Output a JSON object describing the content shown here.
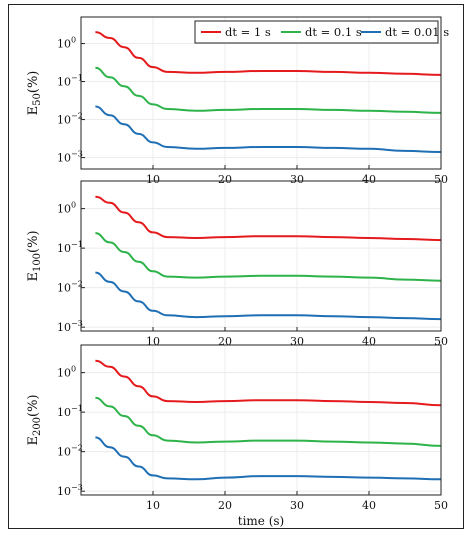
{
  "chart_data": [
    {
      "type": "line",
      "ylabel_main": "E",
      "ylabel_sub": "50",
      "ylabel_unit": "(%)",
      "xlabel": "",
      "xlim": [
        0,
        50
      ],
      "ylim": [
        0.0005,
        5
      ],
      "yscale": "log",
      "x_ticks": [
        10,
        20,
        30,
        40,
        50
      ],
      "y_ticks": [
        {
          "value": 1,
          "base": "10",
          "exp": "0"
        },
        {
          "value": 0.1,
          "base": "10",
          "exp": "−1"
        },
        {
          "value": 0.01,
          "base": "10",
          "exp": "−2"
        },
        {
          "value": 0.001,
          "base": "10",
          "exp": "−3"
        }
      ],
      "legend": {
        "placement": "top-right"
      },
      "series": [
        {
          "name": "dt = 1 s",
          "color": "#e41a1c",
          "x": [
            2,
            4,
            6,
            8,
            10,
            12,
            16,
            20,
            25,
            30,
            35,
            40,
            45,
            50
          ],
          "y": [
            2.0,
            1.4,
            0.8,
            0.42,
            0.24,
            0.18,
            0.17,
            0.18,
            0.19,
            0.19,
            0.18,
            0.17,
            0.16,
            0.15
          ]
        },
        {
          "name": "dt = 0.1 s",
          "color": "#2db34a",
          "x": [
            2,
            4,
            6,
            8,
            10,
            12,
            16,
            20,
            25,
            30,
            35,
            40,
            45,
            50
          ],
          "y": [
            0.23,
            0.13,
            0.075,
            0.042,
            0.025,
            0.019,
            0.017,
            0.018,
            0.019,
            0.019,
            0.018,
            0.017,
            0.016,
            0.015
          ]
        },
        {
          "name": "dt = 0.01 s",
          "color": "#1f6fb4",
          "x": [
            2,
            4,
            6,
            8,
            10,
            12,
            16,
            20,
            25,
            30,
            35,
            40,
            45,
            50
          ],
          "y": [
            0.022,
            0.013,
            0.0075,
            0.0042,
            0.0025,
            0.0019,
            0.0017,
            0.0018,
            0.0019,
            0.0019,
            0.0018,
            0.0017,
            0.0015,
            0.0014
          ]
        }
      ]
    },
    {
      "type": "line",
      "ylabel_main": "E",
      "ylabel_sub": "100",
      "ylabel_unit": "(%)",
      "xlabel": "",
      "xlim": [
        0,
        50
      ],
      "ylim": [
        0.0008,
        5
      ],
      "yscale": "log",
      "x_ticks": [
        10,
        20,
        30,
        40,
        50
      ],
      "y_ticks": [
        {
          "value": 1,
          "base": "10",
          "exp": "0"
        },
        {
          "value": 0.1,
          "base": "10",
          "exp": "−1"
        },
        {
          "value": 0.01,
          "base": "10",
          "exp": "−2"
        },
        {
          "value": 0.001,
          "base": "10",
          "exp": "−3"
        }
      ],
      "series": [
        {
          "name": "dt = 1 s",
          "color": "#e41a1c",
          "x": [
            2,
            4,
            6,
            8,
            10,
            12,
            16,
            20,
            25,
            30,
            35,
            40,
            45,
            50
          ],
          "y": [
            2.0,
            1.4,
            0.8,
            0.45,
            0.25,
            0.19,
            0.18,
            0.19,
            0.2,
            0.2,
            0.19,
            0.18,
            0.17,
            0.16
          ]
        },
        {
          "name": "dt = 0.1 s",
          "color": "#2db34a",
          "x": [
            2,
            4,
            6,
            8,
            10,
            12,
            16,
            20,
            25,
            30,
            35,
            40,
            45,
            50
          ],
          "y": [
            0.24,
            0.14,
            0.08,
            0.045,
            0.026,
            0.019,
            0.018,
            0.019,
            0.02,
            0.02,
            0.019,
            0.018,
            0.016,
            0.015
          ]
        },
        {
          "name": "dt = 0.01 s",
          "color": "#1f6fb4",
          "x": [
            2,
            4,
            6,
            8,
            10,
            12,
            16,
            20,
            25,
            30,
            35,
            40,
            45,
            50
          ],
          "y": [
            0.024,
            0.014,
            0.008,
            0.0045,
            0.0026,
            0.002,
            0.0018,
            0.0019,
            0.002,
            0.002,
            0.0019,
            0.0018,
            0.0017,
            0.0016
          ]
        }
      ]
    },
    {
      "type": "line",
      "ylabel_main": "E",
      "ylabel_sub": "200",
      "ylabel_unit": "(%)",
      "xlabel": "time (s)",
      "xlim": [
        0,
        50
      ],
      "ylim": [
        0.0008,
        5
      ],
      "yscale": "log",
      "x_ticks": [
        10,
        20,
        30,
        40,
        50
      ],
      "y_ticks": [
        {
          "value": 1,
          "base": "10",
          "exp": "0"
        },
        {
          "value": 0.1,
          "base": "10",
          "exp": "−1"
        },
        {
          "value": 0.01,
          "base": "10",
          "exp": "−2"
        },
        {
          "value": 0.001,
          "base": "10",
          "exp": "−3"
        }
      ],
      "series": [
        {
          "name": "dt = 1 s",
          "color": "#e41a1c",
          "x": [
            2,
            4,
            6,
            8,
            10,
            12,
            16,
            20,
            25,
            30,
            35,
            40,
            45,
            50
          ],
          "y": [
            2.0,
            1.4,
            0.8,
            0.45,
            0.25,
            0.19,
            0.18,
            0.19,
            0.2,
            0.2,
            0.19,
            0.18,
            0.17,
            0.15
          ]
        },
        {
          "name": "dt = 0.1 s",
          "color": "#2db34a",
          "x": [
            2,
            4,
            6,
            8,
            10,
            12,
            16,
            20,
            25,
            30,
            35,
            40,
            45,
            50
          ],
          "y": [
            0.23,
            0.14,
            0.08,
            0.045,
            0.026,
            0.019,
            0.017,
            0.018,
            0.019,
            0.019,
            0.018,
            0.017,
            0.016,
            0.014
          ]
        },
        {
          "name": "dt = 0.01 s",
          "color": "#1f6fb4",
          "x": [
            2,
            4,
            6,
            8,
            10,
            12,
            16,
            20,
            25,
            30,
            35,
            40,
            45,
            50
          ],
          "y": [
            0.023,
            0.013,
            0.0075,
            0.0042,
            0.0025,
            0.0021,
            0.002,
            0.0022,
            0.0024,
            0.0024,
            0.0023,
            0.0022,
            0.0021,
            0.002
          ]
        }
      ]
    }
  ]
}
